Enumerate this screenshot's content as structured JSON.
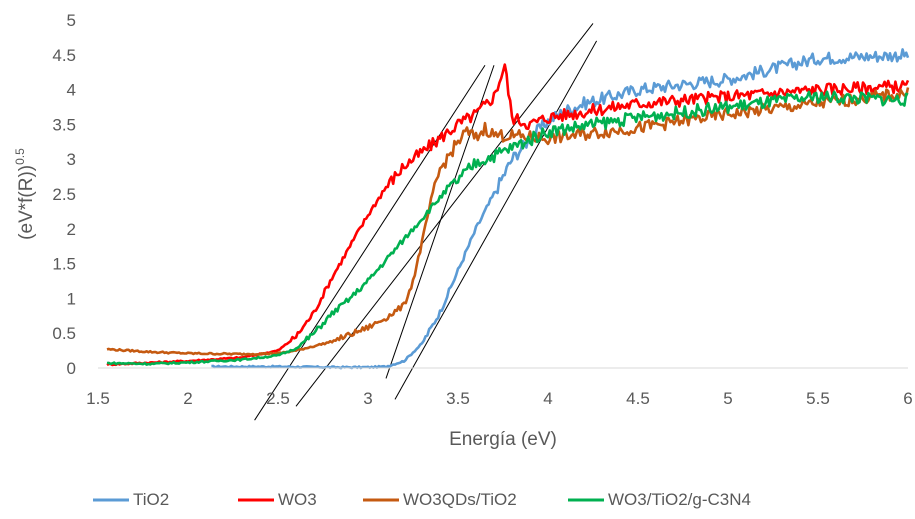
{
  "chart_data": {
    "type": "line",
    "title": "",
    "xlabel": "Energía (eV)",
    "ylabel": "(eV*f(R))",
    "ylabel_sup": "0.5",
    "xlim": [
      1.5,
      6
    ],
    "ylim": [
      0,
      5
    ],
    "x_ticks": [
      "1.5",
      "2",
      "2.5",
      "3",
      "3.5",
      "4",
      "4.5",
      "5",
      "5.5",
      "6"
    ],
    "y_ticks": [
      "0",
      "0.5",
      "1",
      "1.5",
      "2",
      "2.5",
      "3",
      "3.5",
      "4",
      "4.5",
      "5"
    ],
    "grid": false,
    "legend_position": "bottom",
    "series": [
      {
        "name": "TiO2",
        "color": "#5B9BD5",
        "x": [
          2.13,
          2.5,
          2.8,
          3.0,
          3.1,
          3.2,
          3.3,
          3.4,
          3.5,
          3.6,
          3.7,
          3.8,
          3.9,
          4.0,
          4.1,
          4.2,
          4.5,
          5.0,
          5.5,
          6.0
        ],
        "y": [
          0.02,
          0.02,
          0.01,
          0.01,
          0.02,
          0.1,
          0.35,
          0.8,
          1.4,
          2.0,
          2.5,
          3.0,
          3.3,
          3.55,
          3.7,
          3.8,
          4.0,
          4.15,
          4.45,
          4.5
        ]
      },
      {
        "name": "WO3",
        "color": "#FF0000",
        "x": [
          1.55,
          2.0,
          2.3,
          2.5,
          2.6,
          2.7,
          2.8,
          2.9,
          3.0,
          3.1,
          3.2,
          3.3,
          3.4,
          3.5,
          3.6,
          3.7,
          3.76,
          3.8,
          3.9,
          4.0,
          4.5,
          5.0,
          5.5,
          6.0
        ],
        "y": [
          0.05,
          0.1,
          0.15,
          0.25,
          0.45,
          0.8,
          1.3,
          1.75,
          2.2,
          2.6,
          2.9,
          3.1,
          3.3,
          3.5,
          3.65,
          3.9,
          4.35,
          3.6,
          3.5,
          3.6,
          3.8,
          3.9,
          4.0,
          4.05
        ]
      },
      {
        "name": "WO3QDs/TiO2",
        "color": "#C55A11",
        "x": [
          1.55,
          1.8,
          2.0,
          2.3,
          2.5,
          2.6,
          2.8,
          3.0,
          3.1,
          3.2,
          3.25,
          3.3,
          3.35,
          3.4,
          3.5,
          3.55,
          3.6,
          3.65,
          3.7,
          4.0,
          4.5,
          5.0,
          5.5,
          6.0
        ],
        "y": [
          0.27,
          0.23,
          0.21,
          0.2,
          0.21,
          0.25,
          0.38,
          0.58,
          0.72,
          0.9,
          1.25,
          1.8,
          2.4,
          2.85,
          3.25,
          3.4,
          3.3,
          3.45,
          3.35,
          3.3,
          3.45,
          3.65,
          3.8,
          3.95
        ]
      },
      {
        "name": "WO3/TiO2/g-C3N4",
        "color": "#00B050",
        "x": [
          1.55,
          1.8,
          2.0,
          2.3,
          2.5,
          2.6,
          2.7,
          2.8,
          2.9,
          3.0,
          3.1,
          3.2,
          3.3,
          3.4,
          3.5,
          3.6,
          3.7,
          4.0,
          4.5,
          5.0,
          5.5,
          6.0
        ],
        "y": [
          0.07,
          0.06,
          0.08,
          0.12,
          0.18,
          0.28,
          0.5,
          0.78,
          1.0,
          1.25,
          1.55,
          1.85,
          2.15,
          2.45,
          2.7,
          2.95,
          3.05,
          3.4,
          3.6,
          3.75,
          3.9,
          3.85
        ]
      }
    ],
    "tangent_lines": [
      {
        "x": [
          2.37,
          3.65
        ],
        "y": [
          -0.75,
          4.35
        ],
        "color": "#000000"
      },
      {
        "x": [
          2.6,
          4.25
        ],
        "y": [
          -0.55,
          4.95
        ],
        "color": "#000000"
      },
      {
        "x": [
          3.1,
          3.7
        ],
        "y": [
          -0.15,
          4.35
        ],
        "color": "#000000"
      },
      {
        "x": [
          3.15,
          4.27
        ],
        "y": [
          -0.45,
          4.7
        ],
        "color": "#000000"
      }
    ]
  }
}
